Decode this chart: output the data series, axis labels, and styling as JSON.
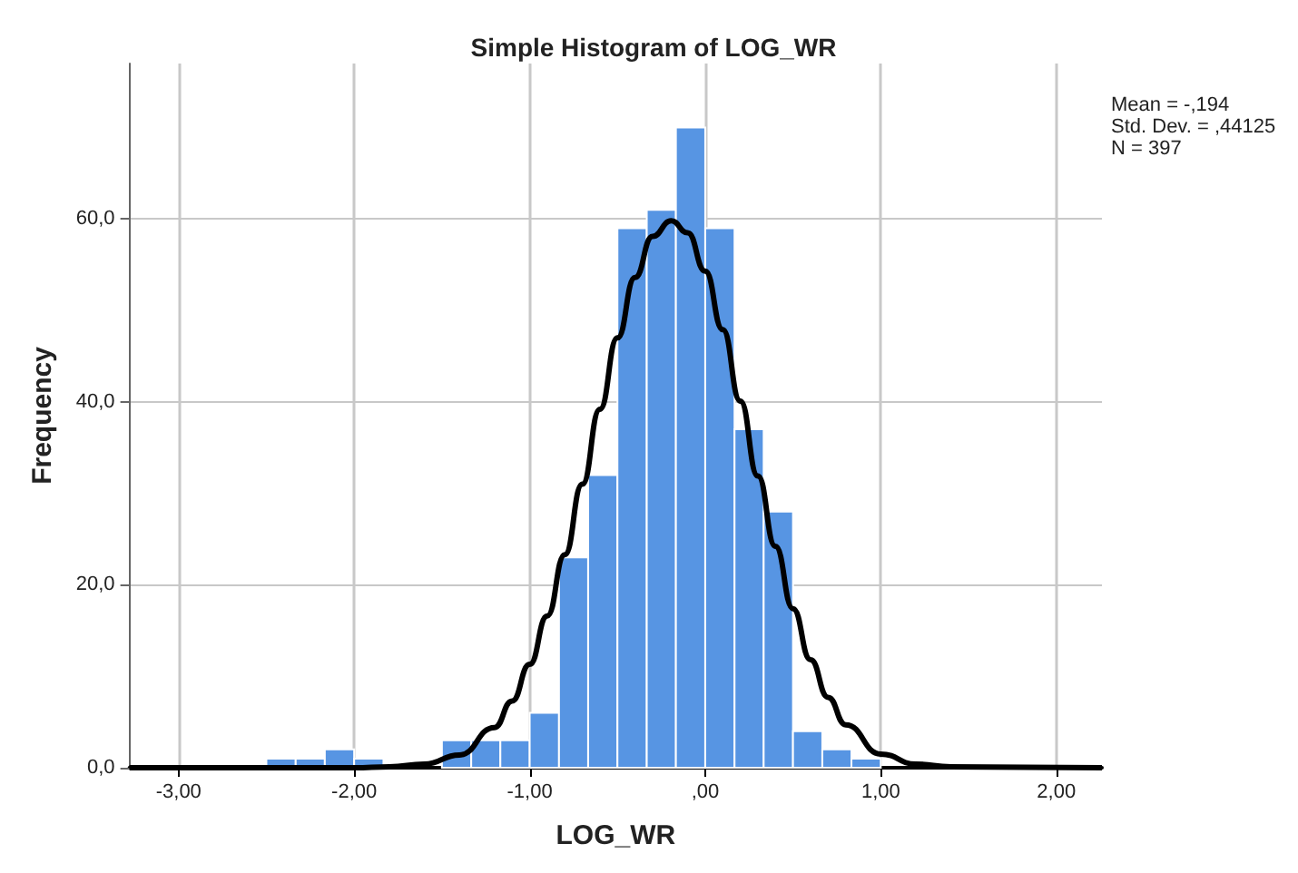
{
  "chart_data": {
    "type": "histogram",
    "title": "Simple Histogram of LOG_WR",
    "xlabel": "LOG_WR",
    "ylabel": "Frequency",
    "annotations": [
      "Mean = -,194",
      "Std. Dev. = ,44125",
      "N = 397"
    ],
    "bins": [
      -2.5,
      -2.333,
      -2.167,
      -2,
      -1.833,
      -1.667,
      -1.5,
      -1.333,
      -1.167,
      -1,
      -0.833,
      -0.667,
      -0.5,
      -0.333,
      -0.167,
      0,
      0.167,
      0.333,
      0.5,
      0.667,
      0.833,
      1
    ],
    "values": [
      1,
      1,
      2,
      1,
      0,
      0,
      3,
      3,
      3,
      6,
      23,
      32,
      59,
      61,
      70,
      59,
      37,
      28,
      4,
      2,
      1
    ],
    "color": "#5795e3",
    "series": [
      {
        "type": "line",
        "color": "#000000",
        "x": [
          -3.28,
          -2.0,
          -1.8,
          -1.6,
          -1.4,
          -1.2,
          -1.1,
          -1.0,
          -0.9,
          -0.8,
          -0.7,
          -0.6,
          -0.5,
          -0.4,
          -0.3,
          -0.194,
          -0.1,
          0,
          0.1,
          0.2,
          0.3,
          0.4,
          0.5,
          0.6,
          0.7,
          0.8,
          1.0,
          1.2,
          1.4,
          2.26
        ],
        "values": [
          0,
          0,
          0.1,
          0.4,
          1.4,
          4.4,
          7.3,
          11.3,
          16.6,
          23.3,
          31.0,
          39.2,
          47.0,
          53.6,
          58.1,
          59.8,
          58.5,
          54.3,
          47.9,
          40.1,
          31.9,
          24.2,
          17.4,
          11.8,
          7.7,
          4.7,
          1.5,
          0.4,
          0.1,
          0
        ]
      }
    ],
    "xlim": [
      -3.28,
      2.26
    ],
    "ylim": [
      0,
      77
    ],
    "xticks": [
      {
        "value": -3,
        "label": "-3,00"
      },
      {
        "value": -2,
        "label": "-2,00"
      },
      {
        "value": -1,
        "label": "-1,00"
      },
      {
        "value": 0,
        "label": ",00"
      },
      {
        "value": 1,
        "label": "1,00"
      },
      {
        "value": 2,
        "label": "2,00"
      }
    ],
    "yticks": [
      {
        "value": 0,
        "label": "0,0"
      },
      {
        "value": 20,
        "label": "20,0"
      },
      {
        "value": 40,
        "label": "40,0"
      },
      {
        "value": 60,
        "label": "60,0"
      }
    ],
    "grid": true
  }
}
